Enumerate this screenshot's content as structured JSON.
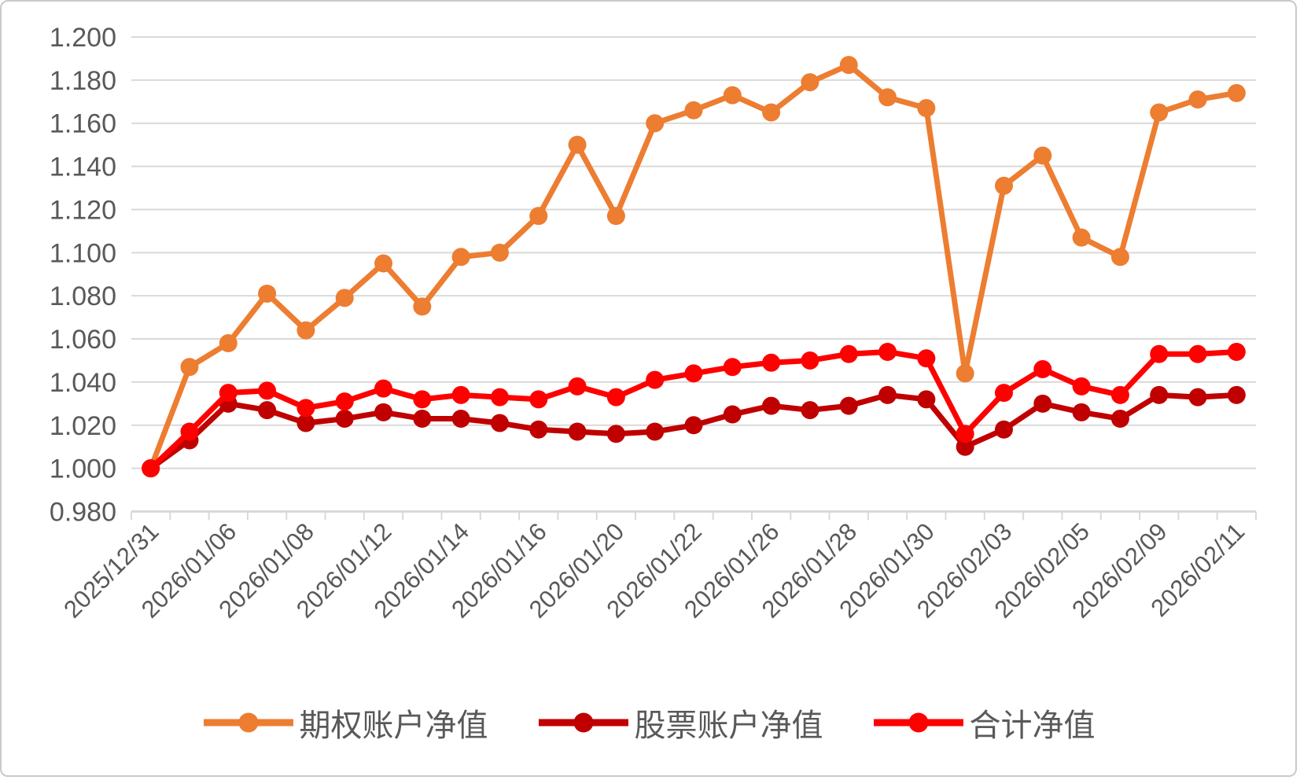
{
  "chart_data": {
    "type": "line",
    "title": "",
    "n_points": 29,
    "x_label_interval": 2,
    "x_tick_labels": [
      "2025/12/31",
      "2026/01/06",
      "2026/01/08",
      "2026/01/12",
      "2026/01/14",
      "2026/01/16",
      "2026/01/20",
      "2026/01/22",
      "2026/01/26",
      "2026/01/28",
      "2026/01/30",
      "2026/02/03",
      "2026/02/05",
      "2026/02/09",
      "2026/02/11"
    ],
    "y_ticks": [
      "0.980",
      "1.000",
      "1.020",
      "1.040",
      "1.060",
      "1.080",
      "1.100",
      "1.120",
      "1.140",
      "1.160",
      "1.180",
      "1.200"
    ],
    "ylim": [
      0.98,
      1.2
    ],
    "grid": "horizontal",
    "legend_position": "bottom",
    "series": [
      {
        "name": "期权账户净值",
        "color": "#ED7D31",
        "values": [
          1.0,
          1.047,
          1.058,
          1.081,
          1.064,
          1.079,
          1.095,
          1.075,
          1.098,
          1.1,
          1.117,
          1.15,
          1.117,
          1.16,
          1.166,
          1.173,
          1.165,
          1.179,
          1.187,
          1.172,
          1.167,
          1.044,
          1.131,
          1.145,
          1.107,
          1.098,
          1.165,
          1.171,
          1.174
        ]
      },
      {
        "name": "股票账户净值",
        "color": "#C00000",
        "values": [
          1.0,
          1.013,
          1.03,
          1.027,
          1.021,
          1.023,
          1.026,
          1.023,
          1.023,
          1.021,
          1.018,
          1.017,
          1.016,
          1.017,
          1.02,
          1.025,
          1.029,
          1.027,
          1.029,
          1.034,
          1.032,
          1.01,
          1.018,
          1.03,
          1.026,
          1.023,
          1.034,
          1.033,
          1.034
        ]
      },
      {
        "name": "合计净值",
        "color": "#FF0000",
        "values": [
          1.0,
          1.017,
          1.035,
          1.036,
          1.028,
          1.031,
          1.037,
          1.032,
          1.034,
          1.033,
          1.032,
          1.038,
          1.033,
          1.041,
          1.044,
          1.047,
          1.049,
          1.05,
          1.053,
          1.054,
          1.051,
          1.016,
          1.035,
          1.046,
          1.038,
          1.034,
          1.053,
          1.053,
          1.054
        ]
      }
    ]
  },
  "colors": {
    "grid": "#D9D9D9",
    "axis": "#D9D9D9",
    "tick_text": "#595959",
    "legend_text": "#595959",
    "background": "#FFFFFF",
    "frame_border": "#C9C9C9"
  }
}
